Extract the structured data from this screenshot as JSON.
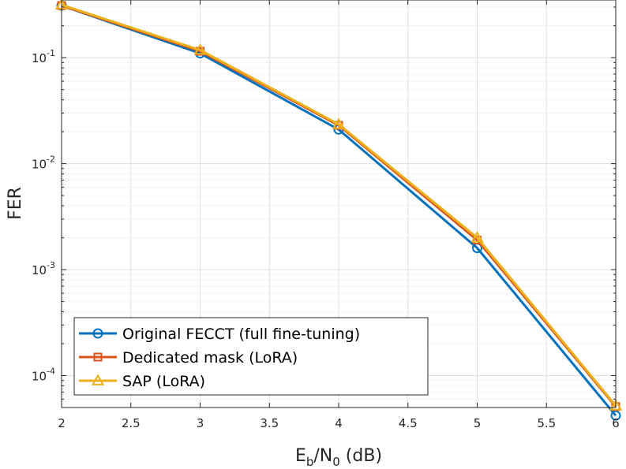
{
  "chart_data": {
    "type": "line",
    "title": "",
    "xlabel": {
      "base": "E",
      "sub1": "b",
      "mid": "/N",
      "sub2": "0",
      "tail": " (dB)"
    },
    "ylabel": "FER",
    "x_scale": "linear",
    "y_scale": "log",
    "xlim": [
      2,
      6
    ],
    "ylim": [
      5e-05,
      0.35
    ],
    "x_ticks": [
      "2",
      "2.5",
      "3",
      "3.5",
      "4",
      "4.5",
      "5",
      "5.5",
      "6"
    ],
    "y_ticks": [
      {
        "base": "10",
        "exp": "-1"
      },
      {
        "base": "10",
        "exp": "-2"
      },
      {
        "base": "10",
        "exp": "-3"
      },
      {
        "base": "10",
        "exp": "-4"
      }
    ],
    "grid": true,
    "minor_grid": true,
    "legend_position": "bottom-left",
    "x": [
      2,
      3,
      4,
      5,
      6
    ],
    "series": [
      {
        "name": "Original FECCT (full fine-tuning)",
        "color": "#0072BD",
        "marker": "circle",
        "values": [
          0.31,
          0.11,
          0.021,
          0.0016,
          4.2e-05
        ]
      },
      {
        "name": "Dedicated mask (LoRA)",
        "color": "#D95319",
        "marker": "square",
        "values": [
          0.31,
          0.115,
          0.023,
          0.0019,
          5.1e-05
        ]
      },
      {
        "name": "SAP (LoRA)",
        "color": "#EDB120",
        "marker": "triangle",
        "values": [
          0.315,
          0.118,
          0.0235,
          0.002,
          5.2e-05
        ]
      }
    ]
  }
}
